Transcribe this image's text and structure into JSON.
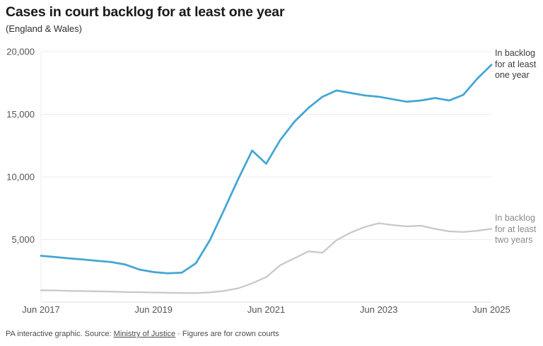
{
  "header": {
    "title": "Cases in court backlog for at least one year",
    "subtitle": "(England & Wales)"
  },
  "chart_data": {
    "type": "line",
    "title": "Cases in court backlog for at least one year",
    "subtitle": "(England & Wales)",
    "x": [
      "Jun 2017",
      "Sep 2017",
      "Dec 2017",
      "Mar 2018",
      "Jun 2018",
      "Sep 2018",
      "Dec 2018",
      "Mar 2019",
      "Jun 2019",
      "Sep 2019",
      "Dec 2019",
      "Mar 2020",
      "Jun 2020",
      "Sep 2020",
      "Dec 2020",
      "Mar 2021",
      "Jun 2021",
      "Sep 2021",
      "Dec 2021",
      "Mar 2022",
      "Jun 2022",
      "Sep 2022",
      "Dec 2022",
      "Mar 2023",
      "Jun 2023",
      "Sep 2023",
      "Dec 2023",
      "Mar 2024",
      "Jun 2024",
      "Sep 2024",
      "Dec 2024",
      "Mar 2025",
      "Jun 2025"
    ],
    "x_tick_labels": [
      "Jun 2017",
      "Jun 2019",
      "Jun 2021",
      "Jun 2023",
      "Jun 2025"
    ],
    "y_ticks": [
      5000,
      10000,
      15000,
      20000
    ],
    "y_tick_labels": [
      "5,000",
      "10,000",
      "15,000",
      "20,000"
    ],
    "ylim": [
      0,
      20000
    ],
    "grid": true,
    "legend_position": "right-annotations",
    "series": [
      {
        "name": "In backlog for at least one year",
        "label_lines": [
          "In backlog",
          "for at least",
          "one year"
        ],
        "color": "#44a5d5",
        "values": [
          3700,
          3600,
          3500,
          3400,
          3300,
          3200,
          3000,
          2600,
          2400,
          2300,
          2350,
          3100,
          4950,
          7350,
          9800,
          12100,
          11050,
          12950,
          14400,
          15500,
          16400,
          16900,
          16700,
          16500,
          16400,
          16200,
          16000,
          16100,
          16300,
          16100,
          16550,
          17850,
          18950
        ]
      },
      {
        "name": "In backlog for at least two years",
        "label_lines": [
          "In backlog",
          "for at least",
          "two years"
        ],
        "color": "#c8c8c8",
        "values": [
          950,
          930,
          900,
          880,
          860,
          840,
          810,
          790,
          770,
          750,
          730,
          720,
          780,
          900,
          1100,
          1500,
          2000,
          2950,
          3500,
          4050,
          3950,
          4950,
          5550,
          6000,
          6300,
          6150,
          6050,
          6100,
          5850,
          5650,
          5600,
          5700,
          5850
        ]
      }
    ],
    "colors": {
      "grid": "#ececec",
      "axis": "#dcdcdc",
      "tick_text": "#545454"
    }
  },
  "footer": {
    "prefix": "PA interactive graphic. Source: ",
    "link": "Ministry of Justice",
    "suffix": " · Figures are for crown courts"
  }
}
